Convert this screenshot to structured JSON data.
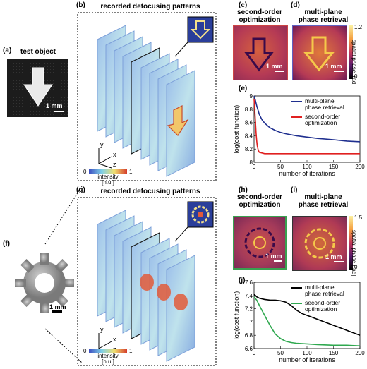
{
  "panels": {
    "a": {
      "label": "(a)",
      "title": "test object",
      "scale": "1 mm"
    },
    "b": {
      "label": "(b)",
      "title": "recorded defocusing patterns",
      "axes": [
        "y",
        "x",
        "z"
      ],
      "colorbar": {
        "min": "0",
        "max": "1",
        "label_line1": "intensity",
        "label_line2": "[n.u.]"
      }
    },
    "c": {
      "label": "(c)",
      "title_line1": "second-order",
      "title_line2": "optimization",
      "scale": "1 mm"
    },
    "d": {
      "label": "(d)",
      "title_line1": "multi-plane",
      "title_line2": "phase retrieval",
      "scale": "1 mm",
      "colorbar": {
        "max": "1.2",
        "min": "0",
        "label": "spatial phase [rad]"
      }
    },
    "f": {
      "label": "(f)",
      "scale": "1 mm"
    },
    "g": {
      "label": "(g)",
      "title": "recorded defocusing patterns",
      "axes": [
        "y",
        "x",
        "z"
      ],
      "colorbar": {
        "min": "0",
        "max": "1",
        "label_line1": "intensity",
        "label_line2": "[n.u.]"
      }
    },
    "h": {
      "label": "(h)",
      "title_line1": "second-order",
      "title_line2": "optimization",
      "scale": "1 mm"
    },
    "i": {
      "label": "(i)",
      "title_line1": "multi-plane",
      "title_line2": "phase retrieval",
      "scale": "1 mm",
      "colorbar": {
        "max": "1.5",
        "min": "0",
        "label": "spatial phase [rad]"
      }
    }
  },
  "chart_data": [
    {
      "panel_label": "(e)",
      "type": "line",
      "xlabel": "number of iterations",
      "ylabel": "log(cost function)",
      "xlim": [
        0,
        200
      ],
      "ylim": [
        8.0,
        9.0
      ],
      "xticks": [
        "0",
        "50",
        "100",
        "150",
        "200"
      ],
      "yticks": [
        "8",
        "8.2",
        "8.4",
        "8.6",
        "8.8",
        "9"
      ],
      "legend_position": "top-right",
      "series": [
        {
          "name_line1": "multi-plane",
          "name_line2": "phase retrieval",
          "color": "#1f2f8f",
          "x": [
            0,
            2,
            5,
            10,
            15,
            20,
            30,
            40,
            50,
            60,
            80,
            100,
            120,
            150,
            175,
            200
          ],
          "y": [
            9.0,
            8.95,
            8.85,
            8.72,
            8.64,
            8.59,
            8.52,
            8.48,
            8.45,
            8.43,
            8.4,
            8.38,
            8.36,
            8.34,
            8.32,
            8.31
          ]
        },
        {
          "name_line1": "second-order",
          "name_line2": "optimization",
          "color": "#e02020",
          "x": [
            0,
            1,
            2,
            3,
            4,
            5,
            6,
            8,
            10,
            15,
            20,
            50,
            100,
            150,
            200
          ],
          "y": [
            8.95,
            8.85,
            8.7,
            8.55,
            8.42,
            8.32,
            8.25,
            8.18,
            8.15,
            8.14,
            8.13,
            8.13,
            8.13,
            8.13,
            8.13
          ]
        }
      ]
    },
    {
      "panel_label": "(j)",
      "type": "line",
      "xlabel": "number of iterations",
      "ylabel": "log(cost function)",
      "xlim": [
        0,
        200
      ],
      "ylim": [
        6.6,
        7.6
      ],
      "xticks": [
        "0",
        "50",
        "100",
        "150",
        "200"
      ],
      "yticks": [
        "6.6",
        "6.8",
        "7",
        "7.2",
        "7.4",
        "7.6"
      ],
      "legend_position": "top-right",
      "series": [
        {
          "name_line1": "multi-plane",
          "name_line2": "phase retrieval",
          "color": "#000000",
          "x": [
            0,
            5,
            10,
            20,
            30,
            40,
            50,
            60,
            70,
            80,
            90,
            100,
            110,
            120,
            130,
            140,
            150,
            160,
            170,
            180,
            190,
            200
          ],
          "y": [
            7.42,
            7.38,
            7.36,
            7.34,
            7.33,
            7.33,
            7.32,
            7.3,
            7.25,
            7.18,
            7.13,
            7.1,
            7.07,
            7.04,
            7.01,
            6.98,
            6.95,
            6.92,
            6.89,
            6.86,
            6.83,
            6.8
          ]
        },
        {
          "name_line1": "second-order",
          "name_line2": "optimization",
          "color": "#2fa84f",
          "x": [
            0,
            5,
            10,
            20,
            30,
            40,
            50,
            60,
            70,
            80,
            100,
            120,
            150,
            175,
            200
          ],
          "y": [
            7.38,
            7.33,
            7.25,
            7.1,
            6.95,
            6.82,
            6.75,
            6.71,
            6.69,
            6.68,
            6.67,
            6.66,
            6.65,
            6.65,
            6.64
          ]
        }
      ]
    }
  ],
  "colors": {
    "phase_dark": "#3a0a4a",
    "phase_mid": "#b5305a",
    "phase_bright": "#f5c94a",
    "intensity_low": "#3b4cc0",
    "intensity_high": "#d43a2a"
  }
}
